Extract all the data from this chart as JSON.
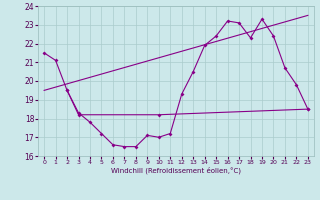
{
  "line1_x": [
    0,
    1,
    2,
    3,
    4,
    5,
    6,
    7,
    8,
    9,
    10,
    11,
    12,
    13,
    14,
    15,
    16,
    17,
    18,
    19,
    20,
    21,
    22,
    23
  ],
  "line1_y": [
    21.5,
    21.1,
    19.5,
    18.3,
    17.8,
    17.2,
    16.6,
    16.5,
    16.5,
    17.1,
    17.0,
    17.2,
    19.3,
    20.5,
    21.9,
    22.4,
    23.2,
    23.1,
    22.3,
    23.3,
    22.4,
    20.7,
    19.8,
    18.5
  ],
  "line2_x": [
    2,
    3,
    10,
    23
  ],
  "line2_y": [
    19.5,
    18.2,
    18.2,
    18.5
  ],
  "line3_x": [
    0,
    23
  ],
  "line3_y": [
    19.5,
    23.5
  ],
  "line_color": "#880088",
  "bg_color": "#cce8ea",
  "grid_color": "#aacccc",
  "xlabel": "Windchill (Refroidissement éolien,°C)",
  "xlim": [
    -0.5,
    23.5
  ],
  "ylim": [
    16,
    24
  ],
  "yticks": [
    16,
    17,
    18,
    19,
    20,
    21,
    22,
    23,
    24
  ],
  "xticks": [
    0,
    1,
    2,
    3,
    4,
    5,
    6,
    7,
    8,
    9,
    10,
    11,
    12,
    13,
    14,
    15,
    16,
    17,
    18,
    19,
    20,
    21,
    22,
    23
  ]
}
